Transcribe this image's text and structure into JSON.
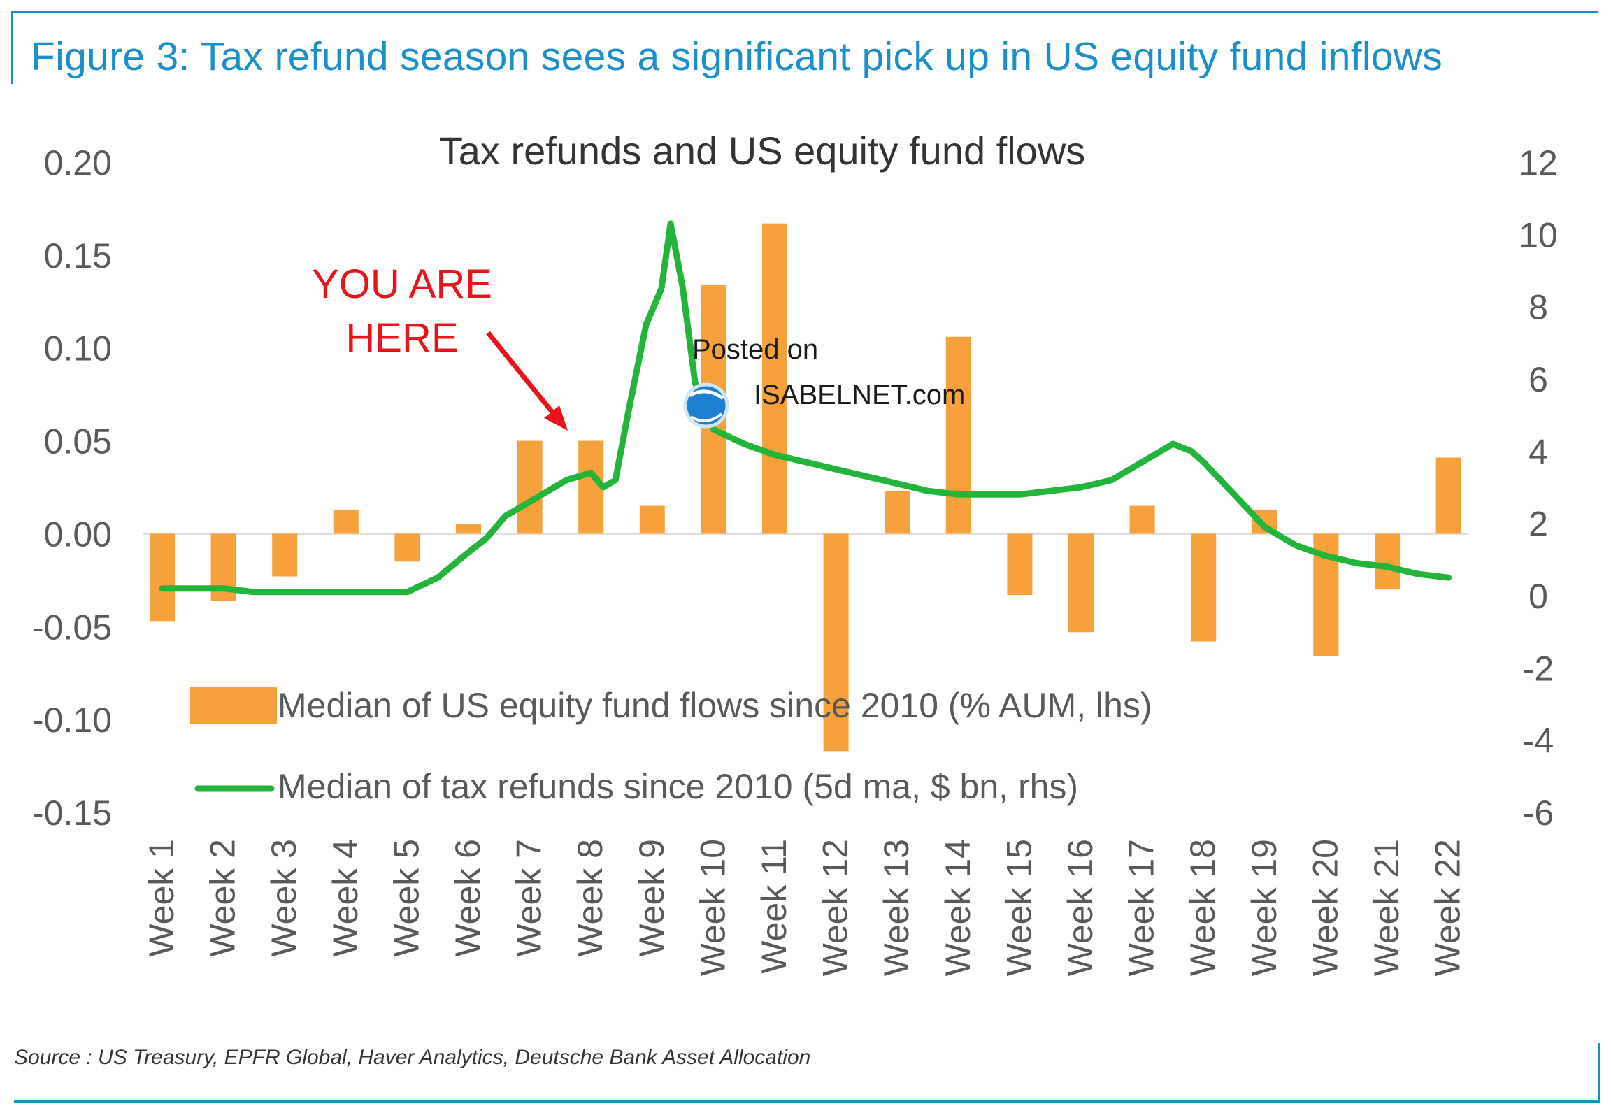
{
  "header": {
    "figure_title": "Figure 3: Tax refund season sees a significant pick up in US equity fund inflows"
  },
  "annotation": {
    "line1": "YOU ARE",
    "line2": "HERE"
  },
  "watermark": {
    "line1": "Posted on",
    "line2": "ISABELNET.com"
  },
  "footer": {
    "source": "Source : US Treasury, EPFR Global, Haver Analytics, Deutsche Bank Asset Allocation"
  },
  "colors": {
    "bars": "#f7a13a",
    "line": "#22b53a",
    "title_blue": "#1b8fc9",
    "annotation_red": "#e8141c",
    "axis_text": "#595959"
  },
  "chart_data": {
    "type": "bar",
    "title": "Tax refunds and US equity fund flows",
    "categories": [
      "Week 1",
      "Week 2",
      "Week 3",
      "Week 4",
      "Week 5",
      "Week 6",
      "Week 7",
      "Week 8",
      "Week 9",
      "Week 10",
      "Week 11",
      "Week 12",
      "Week 13",
      "Week 14",
      "Week 15",
      "Week 16",
      "Week 17",
      "Week 18",
      "Week 19",
      "Week 20",
      "Week 21",
      "Week 22"
    ],
    "y_left": {
      "ylim": [
        -0.15,
        0.2
      ],
      "ticks": [
        "0.20",
        "0.15",
        "0.10",
        "0.05",
        "0.00",
        "-0.05",
        "-0.10",
        "-0.15"
      ],
      "tick_values": [
        0.2,
        0.15,
        0.1,
        0.05,
        0.0,
        -0.05,
        -0.1,
        -0.15
      ]
    },
    "y_right": {
      "ylim": [
        -6,
        12
      ],
      "ticks": [
        "12",
        "10",
        "8",
        "6",
        "4",
        "2",
        "0",
        "-2",
        "-4",
        "-6"
      ],
      "tick_values": [
        12,
        10,
        8,
        6,
        4,
        2,
        0,
        -2,
        -4,
        -6
      ]
    },
    "series": [
      {
        "name": "Median of US equity fund flows since 2010 (% AUM, lhs)",
        "type": "bar",
        "axis": "left",
        "values": [
          -0.047,
          -0.036,
          -0.023,
          0.013,
          -0.015,
          0.005,
          0.05,
          0.05,
          0.015,
          0.134,
          0.167,
          -0.117,
          0.023,
          0.106,
          -0.033,
          -0.053,
          0.015,
          -0.058,
          0.013,
          -0.066,
          -0.03,
          0.041
        ]
      },
      {
        "name": "Median of tax refunds since 2010 (5d ma, $ bn, rhs)",
        "type": "line",
        "axis": "right",
        "x": [
          1,
          1.5,
          2,
          2.5,
          3,
          3.5,
          4,
          4.5,
          5,
          5.5,
          6,
          6.3,
          6.6,
          7,
          7.3,
          7.6,
          8,
          8.2,
          8.4,
          8.6,
          8.9,
          9.15,
          9.3,
          9.5,
          9.7,
          10,
          10.5,
          11,
          11.5,
          12,
          12.5,
          13,
          13.5,
          14,
          14.5,
          15,
          15.5,
          16,
          16.5,
          17,
          17.5,
          17.8,
          18,
          18.5,
          19,
          19.5,
          20,
          20.5,
          21,
          21.5,
          22
        ],
        "values": [
          0.2,
          0.2,
          0.2,
          0.1,
          0.1,
          0.1,
          0.1,
          0.1,
          0.1,
          0.5,
          1.2,
          1.6,
          2.2,
          2.6,
          2.9,
          3.2,
          3.4,
          3.0,
          3.2,
          5.0,
          7.5,
          8.5,
          10.3,
          8.5,
          5.9,
          4.6,
          4.2,
          3.9,
          3.7,
          3.5,
          3.3,
          3.1,
          2.9,
          2.8,
          2.8,
          2.8,
          2.9,
          3.0,
          3.2,
          3.7,
          4.2,
          4.0,
          3.7,
          2.8,
          1.9,
          1.4,
          1.1,
          0.9,
          0.8,
          0.6,
          0.5
        ]
      }
    ],
    "legend": {
      "bars_label": "Median of US equity fund flows since 2010 (% AUM, lhs)",
      "line_label": "Median of tax refunds since 2010 (5d ma, $ bn, rhs)",
      "position": "lower-center"
    },
    "grid": false,
    "zero_line": true
  }
}
